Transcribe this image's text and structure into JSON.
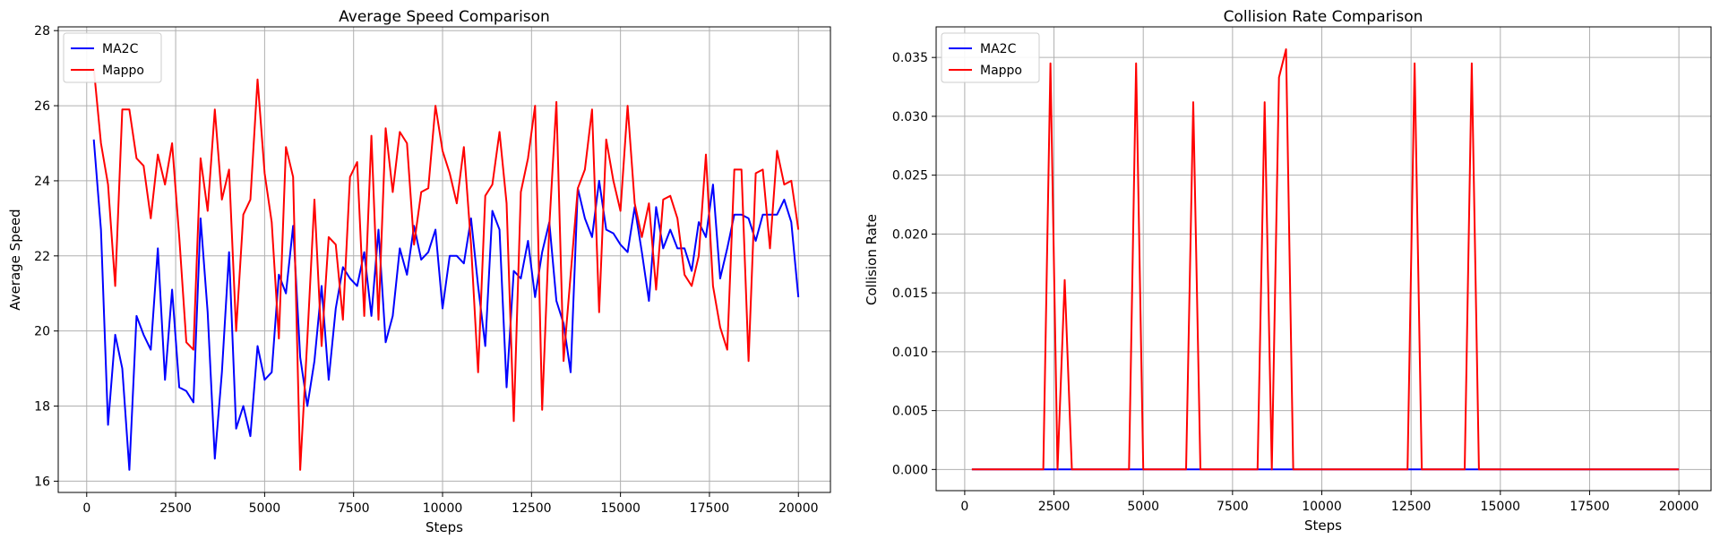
{
  "chart_data": [
    {
      "type": "line",
      "title": "Average Speed Comparison",
      "xlabel": "Steps",
      "ylabel": "Average Speed",
      "xlim": [
        -800,
        20900
      ],
      "ylim": [
        15.7,
        28.1
      ],
      "xticks": [
        0,
        2500,
        5000,
        7500,
        10000,
        12500,
        15000,
        17500,
        20000
      ],
      "xtick_labels": [
        "0",
        "2500",
        "5000",
        "7500",
        "10000",
        "12500",
        "15000",
        "17500",
        "20000"
      ],
      "yticks": [
        16,
        18,
        20,
        22,
        24,
        26,
        28
      ],
      "ytick_labels": [
        "16",
        "18",
        "20",
        "22",
        "24",
        "26",
        "28"
      ],
      "grid": true,
      "legend": "top-left",
      "x_start": 200,
      "x_step": 200,
      "series": [
        {
          "name": "MA2C",
          "color": "#0000ff",
          "values": [
            25.1,
            22.7,
            17.5,
            19.9,
            19.0,
            16.3,
            20.4,
            19.9,
            19.5,
            22.2,
            18.7,
            21.1,
            18.5,
            18.4,
            18.1,
            23.0,
            20.5,
            16.6,
            18.9,
            22.1,
            17.4,
            18.0,
            17.2,
            19.6,
            18.7,
            18.9,
            21.5,
            21.0,
            22.8,
            19.3,
            18.0,
            19.2,
            21.2,
            18.7,
            20.6,
            21.7,
            21.4,
            21.2,
            22.1,
            20.4,
            22.7,
            19.7,
            20.4,
            22.2,
            21.5,
            22.8,
            21.9,
            22.1,
            22.7,
            20.6,
            22.0,
            22.0,
            21.8,
            23.0,
            21.2,
            19.6,
            23.2,
            22.7,
            18.5,
            21.6,
            21.4,
            22.4,
            20.9,
            22.1,
            22.9,
            20.8,
            20.2,
            18.9,
            23.8,
            23.0,
            22.5,
            24.0,
            22.7,
            22.6,
            22.3,
            22.1,
            23.3,
            22.1,
            20.8,
            23.3,
            22.2,
            22.7,
            22.2,
            22.2,
            21.6,
            22.9,
            22.5,
            23.9,
            21.4,
            22.2,
            23.1,
            23.1,
            23.0,
            22.4,
            23.1,
            23.1,
            23.1,
            23.5,
            22.9,
            20.9
          ]
        },
        {
          "name": "Mappo",
          "color": "#ff0000",
          "values": [
            27.0,
            25.0,
            23.9,
            21.2,
            25.9,
            25.9,
            24.6,
            24.4,
            23.0,
            24.7,
            23.9,
            25.0,
            22.5,
            19.7,
            19.5,
            24.6,
            23.2,
            25.9,
            23.5,
            24.3,
            20.0,
            23.1,
            23.5,
            26.7,
            24.2,
            22.9,
            19.8,
            24.9,
            24.1,
            16.3,
            19.8,
            23.5,
            19.6,
            22.5,
            22.3,
            20.3,
            24.1,
            24.5,
            20.4,
            25.2,
            20.3,
            25.4,
            23.7,
            25.3,
            25.0,
            22.3,
            23.7,
            23.8,
            26.0,
            24.8,
            24.2,
            23.4,
            24.9,
            22.3,
            18.9,
            23.6,
            23.9,
            25.3,
            23.4,
            17.6,
            23.7,
            24.6,
            26.0,
            17.9,
            22.8,
            26.1,
            19.2,
            21.5,
            23.8,
            24.3,
            25.9,
            20.5,
            25.1,
            24.0,
            23.2,
            26.0,
            23.4,
            22.5,
            23.4,
            21.1,
            23.5,
            23.6,
            23.0,
            21.5,
            21.2,
            22.0,
            24.7,
            21.2,
            20.1,
            19.5,
            24.3,
            24.3,
            19.2,
            24.2,
            24.3,
            22.2,
            24.8,
            23.9,
            24.0,
            22.7
          ]
        }
      ]
    },
    {
      "type": "line",
      "title": "Collision Rate Comparison",
      "xlabel": "Steps",
      "ylabel": "Collision Rate",
      "xlim": [
        -800,
        20900
      ],
      "ylim": [
        -0.0018,
        0.0376
      ],
      "xticks": [
        0,
        2500,
        5000,
        7500,
        10000,
        12500,
        15000,
        17500,
        20000
      ],
      "xtick_labels": [
        "0",
        "2500",
        "5000",
        "7500",
        "10000",
        "12500",
        "15000",
        "17500",
        "20000"
      ],
      "yticks": [
        0,
        0.005,
        0.01,
        0.015,
        0.02,
        0.025,
        0.03,
        0.035
      ],
      "ytick_labels": [
        "0.000",
        "0.005",
        "0.010",
        "0.015",
        "0.020",
        "0.025",
        "0.030",
        "0.035"
      ],
      "grid": true,
      "legend": "top-left",
      "series": [
        {
          "name": "MA2C",
          "color": "#0000ff",
          "points": [
            [
              200,
              0
            ],
            [
              20000,
              0
            ]
          ]
        },
        {
          "name": "Mappo",
          "color": "#ff0000",
          "points": [
            [
              200,
              0
            ],
            [
              2200,
              0
            ],
            [
              2400,
              0.0345
            ],
            [
              2600,
              0
            ],
            [
              2800,
              0.0161
            ],
            [
              3000,
              0
            ],
            [
              4600,
              0
            ],
            [
              4800,
              0.0345
            ],
            [
              5000,
              0
            ],
            [
              6200,
              0
            ],
            [
              6400,
              0.0312
            ],
            [
              6600,
              0
            ],
            [
              8200,
              0
            ],
            [
              8400,
              0.0312
            ],
            [
              8600,
              0
            ],
            [
              8800,
              0.0333
            ],
            [
              9000,
              0.0357
            ],
            [
              9200,
              0
            ],
            [
              12400,
              0
            ],
            [
              12600,
              0.0345
            ],
            [
              12800,
              0
            ],
            [
              14000,
              0
            ],
            [
              14200,
              0.0345
            ],
            [
              14400,
              0
            ],
            [
              20000,
              0
            ]
          ]
        }
      ]
    }
  ]
}
